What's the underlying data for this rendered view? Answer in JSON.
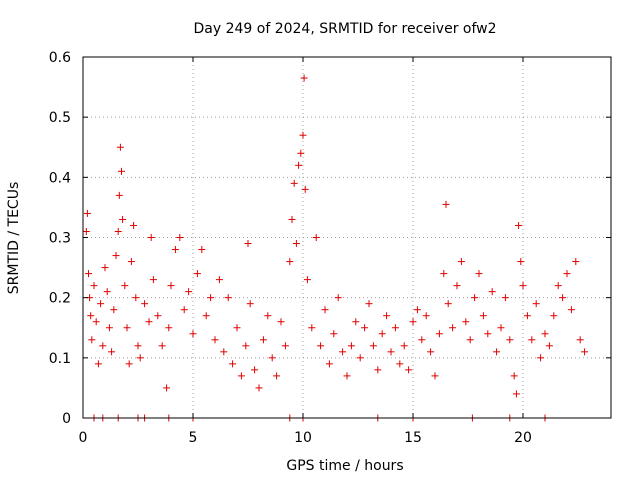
{
  "chart_data": {
    "type": "scatter",
    "title": "Day 249 of 2024, SRMTID for receiver ofw2",
    "xlabel": "GPS time / hours",
    "ylabel": "SRMTID / TECUs",
    "xlim": [
      0,
      24
    ],
    "ylim": [
      0,
      0.6
    ],
    "xticks": [
      0,
      5,
      10,
      15,
      20
    ],
    "yticks": [
      0,
      0.1,
      0.2,
      0.3,
      0.4,
      0.5,
      0.6
    ],
    "xtick_labels": [
      "0",
      "5",
      "10",
      "15",
      "20"
    ],
    "ytick_labels": [
      "0",
      "0.1",
      "0.2",
      "0.3",
      "0.4",
      "0.5",
      "0.6"
    ],
    "grid": true,
    "marker": "+",
    "series_color": "#e00000",
    "series": [
      {
        "name": "SRMTID",
        "points": [
          [
            0.15,
            0.31
          ],
          [
            0.2,
            0.34
          ],
          [
            0.25,
            0.24
          ],
          [
            0.3,
            0.2
          ],
          [
            0.35,
            0.17
          ],
          [
            0.4,
            0.13
          ],
          [
            0.5,
            0.22
          ],
          [
            0.6,
            0.16
          ],
          [
            0.7,
            0.09
          ],
          [
            0.8,
            0.19
          ],
          [
            0.9,
            0.12
          ],
          [
            1.0,
            0.25
          ],
          [
            1.1,
            0.21
          ],
          [
            1.2,
            0.15
          ],
          [
            1.3,
            0.11
          ],
          [
            1.4,
            0.18
          ],
          [
            1.5,
            0.27
          ],
          [
            1.6,
            0.31
          ],
          [
            1.65,
            0.37
          ],
          [
            1.7,
            0.45
          ],
          [
            1.75,
            0.41
          ],
          [
            1.8,
            0.33
          ],
          [
            1.9,
            0.22
          ],
          [
            2.0,
            0.15
          ],
          [
            2.1,
            0.09
          ],
          [
            2.2,
            0.26
          ],
          [
            2.3,
            0.32
          ],
          [
            2.4,
            0.2
          ],
          [
            2.5,
            0.12
          ],
          [
            2.6,
            0.1
          ],
          [
            2.8,
            0.19
          ],
          [
            3.0,
            0.16
          ],
          [
            3.1,
            0.3
          ],
          [
            3.2,
            0.23
          ],
          [
            3.4,
            0.17
          ],
          [
            3.6,
            0.12
          ],
          [
            3.8,
            0.05
          ],
          [
            3.9,
            0.15
          ],
          [
            4.0,
            0.22
          ],
          [
            4.2,
            0.28
          ],
          [
            4.4,
            0.3
          ],
          [
            4.6,
            0.18
          ],
          [
            4.8,
            0.21
          ],
          [
            5.0,
            0.14
          ],
          [
            5.2,
            0.24
          ],
          [
            5.4,
            0.28
          ],
          [
            5.6,
            0.17
          ],
          [
            5.8,
            0.2
          ],
          [
            6.0,
            0.13
          ],
          [
            6.2,
            0.23
          ],
          [
            6.4,
            0.11
          ],
          [
            6.6,
            0.2
          ],
          [
            6.8,
            0.09
          ],
          [
            7.0,
            0.15
          ],
          [
            7.2,
            0.07
          ],
          [
            7.4,
            0.12
          ],
          [
            7.5,
            0.29
          ],
          [
            7.6,
            0.19
          ],
          [
            7.8,
            0.08
          ],
          [
            8.0,
            0.05
          ],
          [
            8.2,
            0.13
          ],
          [
            8.4,
            0.17
          ],
          [
            8.6,
            0.1
          ],
          [
            8.8,
            0.07
          ],
          [
            9.0,
            0.16
          ],
          [
            9.2,
            0.12
          ],
          [
            9.4,
            0.26
          ],
          [
            9.5,
            0.33
          ],
          [
            9.6,
            0.39
          ],
          [
            9.7,
            0.29
          ],
          [
            9.8,
            0.42
          ],
          [
            9.9,
            0.44
          ],
          [
            10.0,
            0.47
          ],
          [
            10.05,
            0.565
          ],
          [
            10.1,
            0.38
          ],
          [
            10.2,
            0.23
          ],
          [
            10.4,
            0.15
          ],
          [
            10.6,
            0.3
          ],
          [
            10.8,
            0.12
          ],
          [
            11.0,
            0.18
          ],
          [
            11.2,
            0.09
          ],
          [
            11.4,
            0.14
          ],
          [
            11.6,
            0.2
          ],
          [
            11.8,
            0.11
          ],
          [
            12.0,
            0.07
          ],
          [
            12.2,
            0.12
          ],
          [
            12.4,
            0.16
          ],
          [
            12.6,
            0.1
          ],
          [
            12.8,
            0.15
          ],
          [
            13.0,
            0.19
          ],
          [
            13.2,
            0.12
          ],
          [
            13.4,
            0.08
          ],
          [
            13.6,
            0.14
          ],
          [
            13.8,
            0.17
          ],
          [
            14.0,
            0.11
          ],
          [
            14.2,
            0.15
          ],
          [
            14.4,
            0.09
          ],
          [
            14.6,
            0.12
          ],
          [
            14.8,
            0.08
          ],
          [
            15.0,
            0.16
          ],
          [
            15.2,
            0.18
          ],
          [
            15.4,
            0.13
          ],
          [
            15.6,
            0.17
          ],
          [
            15.8,
            0.11
          ],
          [
            16.0,
            0.07
          ],
          [
            16.2,
            0.14
          ],
          [
            16.4,
            0.24
          ],
          [
            16.5,
            0.355
          ],
          [
            16.6,
            0.19
          ],
          [
            16.8,
            0.15
          ],
          [
            17.0,
            0.22
          ],
          [
            17.2,
            0.26
          ],
          [
            17.4,
            0.16
          ],
          [
            17.6,
            0.13
          ],
          [
            17.8,
            0.2
          ],
          [
            18.0,
            0.24
          ],
          [
            18.2,
            0.17
          ],
          [
            18.4,
            0.14
          ],
          [
            18.6,
            0.21
          ],
          [
            18.8,
            0.11
          ],
          [
            19.0,
            0.15
          ],
          [
            19.2,
            0.2
          ],
          [
            19.4,
            0.13
          ],
          [
            19.6,
            0.07
          ],
          [
            19.7,
            0.04
          ],
          [
            19.8,
            0.32
          ],
          [
            19.9,
            0.26
          ],
          [
            20.0,
            0.22
          ],
          [
            20.2,
            0.17
          ],
          [
            20.4,
            0.13
          ],
          [
            20.6,
            0.19
          ],
          [
            20.8,
            0.1
          ],
          [
            21.0,
            0.14
          ],
          [
            21.2,
            0.12
          ],
          [
            21.4,
            0.17
          ],
          [
            21.6,
            0.22
          ],
          [
            21.8,
            0.2
          ],
          [
            22.0,
            0.24
          ],
          [
            22.2,
            0.18
          ],
          [
            22.4,
            0.26
          ],
          [
            22.6,
            0.13
          ],
          [
            22.8,
            0.11
          ],
          [
            0.5,
            0.0
          ],
          [
            0.9,
            0.0
          ],
          [
            1.6,
            0.0
          ],
          [
            2.5,
            0.0
          ],
          [
            2.8,
            0.0
          ],
          [
            3.9,
            0.0
          ],
          [
            5.0,
            0.0
          ],
          [
            9.4,
            0.0
          ],
          [
            10.0,
            0.0
          ],
          [
            13.4,
            0.0
          ],
          [
            15.0,
            0.0
          ],
          [
            17.7,
            0.0
          ],
          [
            19.4,
            0.0
          ],
          [
            21.0,
            0.0
          ]
        ]
      }
    ]
  }
}
